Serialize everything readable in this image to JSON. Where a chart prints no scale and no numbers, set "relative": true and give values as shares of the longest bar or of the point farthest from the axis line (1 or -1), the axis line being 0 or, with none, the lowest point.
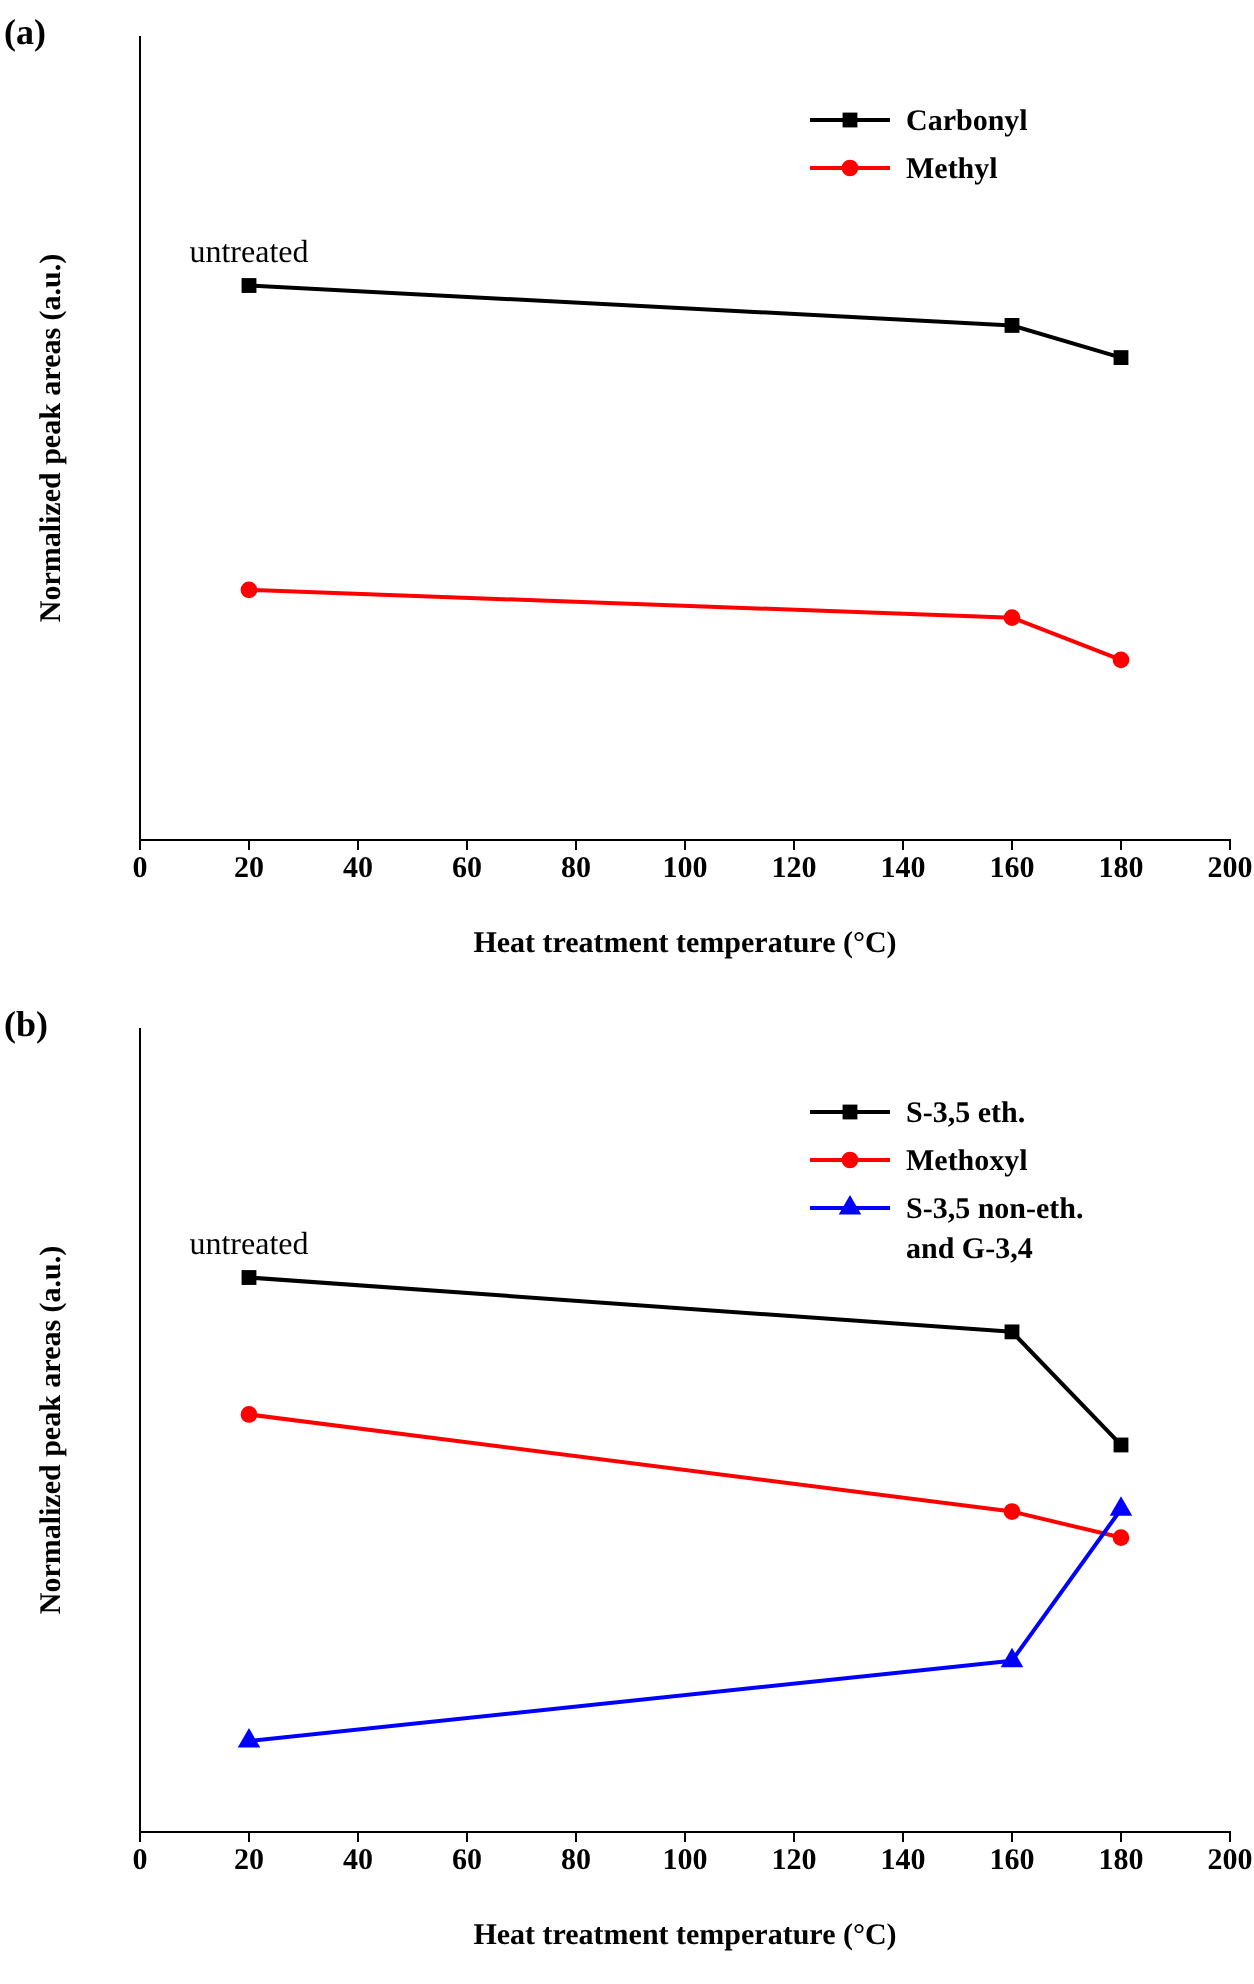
{
  "chart_data": [
    {
      "type": "line",
      "title": "(a)",
      "xlabel": "Heat treatment temperature (°C)",
      "ylabel": "Normalized peak areas (a.u.)",
      "x": [
        20,
        160,
        180
      ],
      "xlim": [
        0,
        200
      ],
      "xticks": [
        0,
        20,
        40,
        60,
        80,
        100,
        120,
        140,
        160,
        180,
        200
      ],
      "relative": true,
      "legend": "top right",
      "annotations": [
        {
          "text": "untreated",
          "x": 20,
          "y": 1
        }
      ],
      "series": [
        {
          "name": "Carbonyl",
          "color": "#000000",
          "marker": "square",
          "values": [
            1,
            0.928,
            0.87
          ]
        },
        {
          "name": "Methyl",
          "color": "#ff0000",
          "marker": "circle",
          "values": [
            0.451,
            0.401,
            0.325
          ]
        }
      ]
    },
    {
      "type": "line",
      "title": "(b)",
      "xlabel": "Heat treatment temperature (°C)",
      "ylabel": "Normalized peak areas (a.u.)",
      "x": [
        20,
        160,
        180
      ],
      "xlim": [
        0,
        200
      ],
      "xticks": [
        0,
        20,
        40,
        60,
        80,
        100,
        120,
        140,
        160,
        180,
        200
      ],
      "relative": true,
      "legend": "top right",
      "annotations": [
        {
          "text": "untreated",
          "x": 20,
          "y": 1
        }
      ],
      "series": [
        {
          "name": "S-3,5 eth.",
          "color": "#000000",
          "marker": "square",
          "values": [
            1,
            0.902,
            0.698
          ]
        },
        {
          "name": "Methoxyl",
          "color": "#ff0000",
          "marker": "circle",
          "values": [
            0.753,
            0.578,
            0.531
          ]
        },
        {
          "name": "S-3,5 non-eth. and G-3,4",
          "color": "#0000ff",
          "marker": "triangle",
          "values": [
            0.164,
            0.309,
            0.582
          ]
        }
      ]
    }
  ]
}
